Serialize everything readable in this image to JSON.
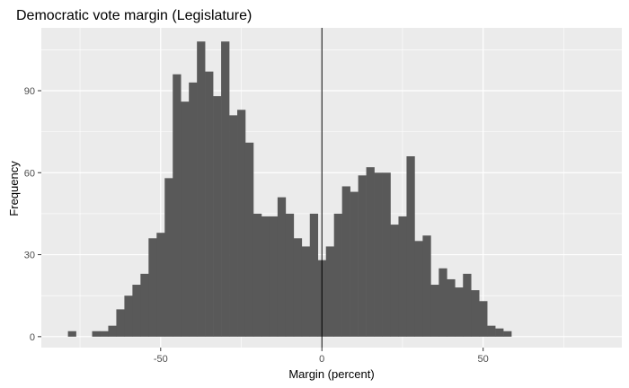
{
  "chart_data": {
    "type": "bar",
    "title": "Democratic vote margin (Legislature)",
    "xlabel": "Margin (percent)",
    "ylabel": "Frequency",
    "xlim": [
      -87,
      93
    ],
    "ylim": [
      -4,
      113
    ],
    "binwidth": 2.5,
    "x_ticks": [
      -50,
      0,
      50
    ],
    "x_minor": [
      -75,
      -25,
      25,
      75
    ],
    "y_ticks": [
      0,
      30,
      60,
      90
    ],
    "y_minor": [
      15,
      45,
      75,
      105
    ],
    "vline_x": 0,
    "grid": true,
    "colors": {
      "panel": "#ebebeb",
      "grid": "#ffffff",
      "bar": "#595959",
      "vline": "#000000"
    },
    "bins": [
      {
        "x": -77.5,
        "count": 2
      },
      {
        "x": -75,
        "count": 0
      },
      {
        "x": -72.5,
        "count": 0
      },
      {
        "x": -70,
        "count": 2
      },
      {
        "x": -67.5,
        "count": 2
      },
      {
        "x": -65,
        "count": 4
      },
      {
        "x": -62.5,
        "count": 10
      },
      {
        "x": -60,
        "count": 15
      },
      {
        "x": -57.5,
        "count": 19
      },
      {
        "x": -55,
        "count": 23
      },
      {
        "x": -52.5,
        "count": 36
      },
      {
        "x": -50,
        "count": 38
      },
      {
        "x": -47.5,
        "count": 58
      },
      {
        "x": -45,
        "count": 96
      },
      {
        "x": -42.5,
        "count": 86
      },
      {
        "x": -40,
        "count": 93
      },
      {
        "x": -37.5,
        "count": 108
      },
      {
        "x": -35,
        "count": 97
      },
      {
        "x": -32.5,
        "count": 88
      },
      {
        "x": -30,
        "count": 108
      },
      {
        "x": -27.5,
        "count": 81
      },
      {
        "x": -25,
        "count": 83
      },
      {
        "x": -22.5,
        "count": 71
      },
      {
        "x": -20,
        "count": 45
      },
      {
        "x": -17.5,
        "count": 44
      },
      {
        "x": -15,
        "count": 44
      },
      {
        "x": -12.5,
        "count": 51
      },
      {
        "x": -10,
        "count": 45
      },
      {
        "x": -7.5,
        "count": 36
      },
      {
        "x": -5,
        "count": 33
      },
      {
        "x": -2.5,
        "count": 45
      },
      {
        "x": 0,
        "count": 28
      },
      {
        "x": 2.5,
        "count": 33
      },
      {
        "x": 5,
        "count": 45
      },
      {
        "x": 7.5,
        "count": 55
      },
      {
        "x": 10,
        "count": 53
      },
      {
        "x": 12.5,
        "count": 59
      },
      {
        "x": 15,
        "count": 62
      },
      {
        "x": 17.5,
        "count": 60
      },
      {
        "x": 20,
        "count": 60
      },
      {
        "x": 22.5,
        "count": 41
      },
      {
        "x": 25,
        "count": 44
      },
      {
        "x": 27.5,
        "count": 66
      },
      {
        "x": 30,
        "count": 35
      },
      {
        "x": 32.5,
        "count": 37
      },
      {
        "x": 35,
        "count": 19
      },
      {
        "x": 37.5,
        "count": 25
      },
      {
        "x": 40,
        "count": 21
      },
      {
        "x": 42.5,
        "count": 18
      },
      {
        "x": 45,
        "count": 23
      },
      {
        "x": 47.5,
        "count": 17
      },
      {
        "x": 50,
        "count": 13
      },
      {
        "x": 52.5,
        "count": 4
      },
      {
        "x": 55,
        "count": 3
      },
      {
        "x": 57.5,
        "count": 2
      }
    ]
  }
}
